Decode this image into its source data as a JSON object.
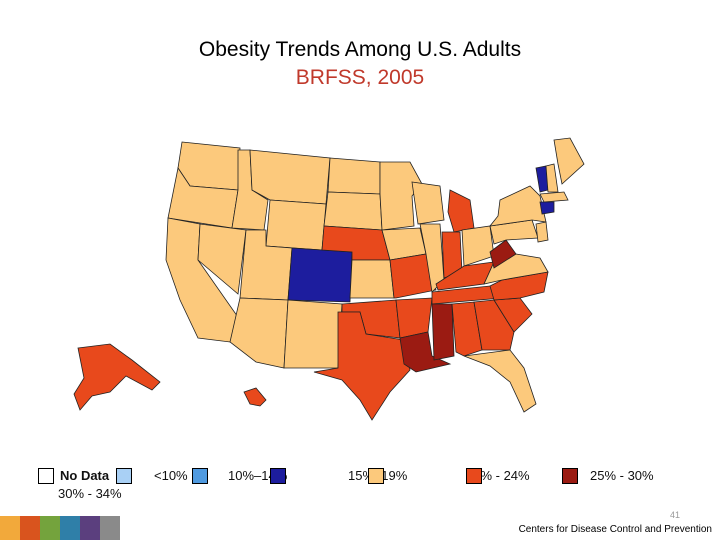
{
  "title": "Obesity Trends Among U.S. Adults",
  "subtitle": "BRFSS, 2005",
  "legend": {
    "items": [
      {
        "label": "No Data",
        "color": "#ffffff"
      },
      {
        "label": "<10%",
        "color": "#a9d0f5"
      },
      {
        "label": "10%–14%",
        "color": "#1d1d9e"
      },
      {
        "label": "15%–19%",
        "color": "#fcc97c"
      },
      {
        "label": "20% - 24%",
        "color": "#e8491c"
      },
      {
        "label": "25% - 30%",
        "color": "#9b1b12"
      }
    ],
    "extra": {
      "label": "30% - 34%",
      "color": "#4f9ae0"
    }
  },
  "colors": {
    "lt15": "#1d1d9e",
    "15to19": "#fcc97c",
    "20to24": "#e8491c",
    "25to30": "#9b1b12"
  },
  "page_number": "41",
  "footer": "Centers for Disease Control and Prevention",
  "stripe_colors": [
    "#f2a93b",
    "#d9541e",
    "#74a33d",
    "#2f7fa8",
    "#5b3f7e",
    "#8a8a8a"
  ]
}
